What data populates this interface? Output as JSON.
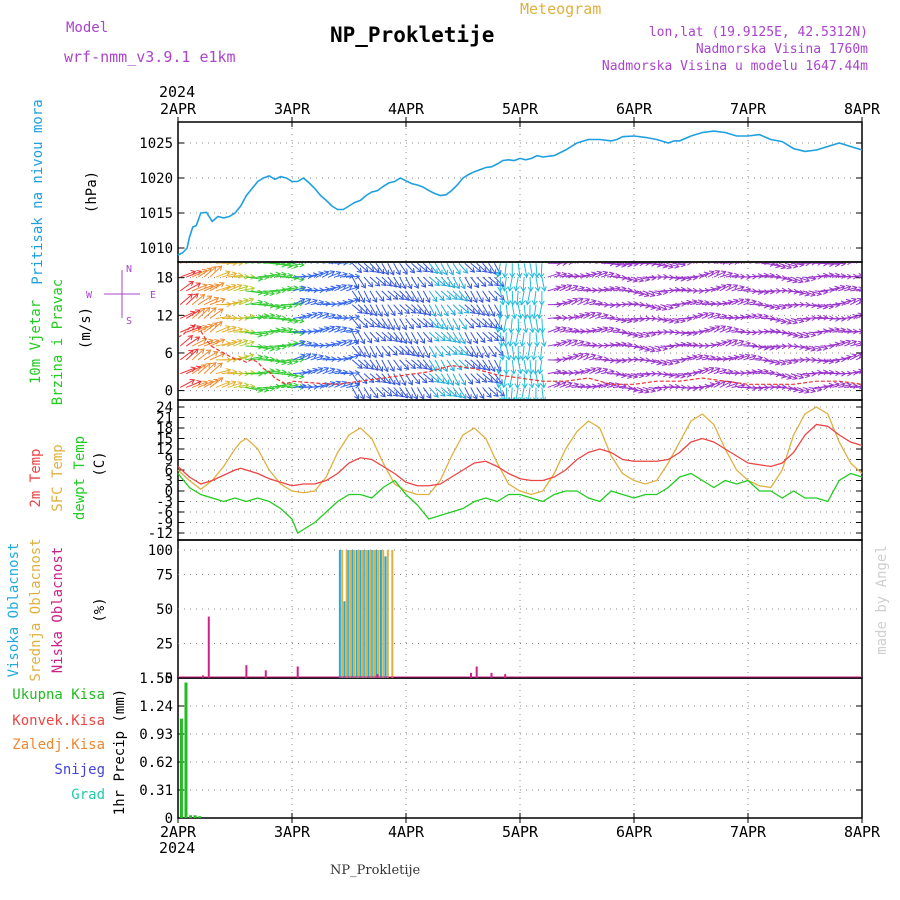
{
  "header": {
    "model_label": "Model",
    "model_name": "wrf-nmm_v3.9.1 e1km",
    "title": "NP_Prokletije",
    "meteogram_label": "Meteogram",
    "lonlat": "lon,lat (19.9125E, 42.5312N)",
    "elevation": "Nadmorska Visina 1760m",
    "model_elevation": "Nadmorska Visina u modelu 1647.44m",
    "footer_title": "NP_Prokletije",
    "credit": "made by Angel"
  },
  "colors": {
    "pressure": "#1ea0e0",
    "wind_axis_label": "#22cc22",
    "compass": "#aa44cc",
    "temp2m": "#ee4444",
    "sfc_temp": "#e0b040",
    "dewpoint": "#22cc22",
    "high_cloud": "#22aadd",
    "mid_cloud": "#e0b040",
    "low_cloud": "#cc2288",
    "total_precip": "#22bb22",
    "convective": "#ee4444",
    "frozen": "#ee8833",
    "snow": "#4444dd",
    "hail": "#22ccaa",
    "header_purple": "#aa44cc",
    "header_gold": "#e0b040"
  },
  "chart_data": [
    {
      "type": "line",
      "title": "",
      "ylabel_lines": [
        "Pritisak na nivou mora",
        "(hPa)"
      ],
      "top_axis_year": "2024",
      "x_ticks": [
        "2APR",
        "3APR",
        "4APR",
        "5APR",
        "6APR",
        "7APR",
        "8APR"
      ],
      "yticks": [
        "1010",
        "1015",
        "1020",
        "1025"
      ],
      "ylim": [
        1008,
        1028
      ],
      "grid": true,
      "series": [
        {
          "x": [
            0,
            0.04,
            0.08,
            0.1,
            0.13,
            0.16,
            0.2,
            0.25,
            0.3,
            0.35,
            0.4,
            0.45,
            0.5,
            0.55,
            0.6,
            0.65,
            0.7,
            0.75,
            0.8,
            0.85,
            0.9,
            0.95,
            1.0,
            1.05,
            1.1,
            1.15,
            1.2,
            1.25,
            1.3,
            1.35,
            1.4,
            1.45,
            1.5,
            1.55,
            1.6,
            1.65,
            1.7,
            1.75,
            1.8,
            1.85,
            1.9,
            1.95,
            2.0,
            2.05,
            2.1,
            2.15,
            2.2,
            2.25,
            2.3,
            2.35,
            2.4,
            2.45,
            2.5,
            2.55,
            2.6,
            2.65,
            2.7,
            2.75,
            2.8,
            2.85,
            2.9,
            2.95,
            3.0,
            3.05,
            3.1,
            3.15,
            3.2,
            3.3,
            3.4,
            3.5,
            3.6,
            3.7,
            3.8,
            3.85,
            3.9,
            4.0,
            4.1,
            4.2,
            4.3,
            4.35,
            4.4,
            4.5,
            4.6,
            4.7,
            4.8,
            4.9,
            5.0,
            5.1,
            5.2,
            5.3,
            5.4,
            5.5,
            5.6,
            5.7,
            5.8,
            5.9,
            6.0
          ],
          "y": [
            1009,
            1009.3,
            1010,
            1011.5,
            1013,
            1013.2,
            1015,
            1015.1,
            1013.8,
            1014.5,
            1014.3,
            1014.5,
            1015,
            1016,
            1017.5,
            1018.5,
            1019.5,
            1020,
            1020.3,
            1019.8,
            1020.2,
            1020,
            1019.5,
            1019.5,
            1020,
            1019.3,
            1018.5,
            1017.5,
            1016.8,
            1016,
            1015.5,
            1015.5,
            1016,
            1016.5,
            1016.8,
            1017.5,
            1018,
            1018.2,
            1018.8,
            1019.3,
            1019.5,
            1020,
            1019.6,
            1019.2,
            1019,
            1018.7,
            1018.2,
            1017.8,
            1017.5,
            1017.6,
            1018.2,
            1019,
            1020,
            1020.5,
            1020.9,
            1021.2,
            1021.5,
            1021.6,
            1022,
            1022.5,
            1022.6,
            1022.5,
            1022.8,
            1022.6,
            1022.8,
            1023.2,
            1023,
            1023.2,
            1024,
            1025,
            1025.5,
            1025.5,
            1025.3,
            1025.5,
            1025.9,
            1026,
            1025.8,
            1025.5,
            1025,
            1025.3,
            1025.3,
            1026,
            1026.5,
            1026.7,
            1026.5,
            1026,
            1026,
            1026.2,
            1025.5,
            1025.2,
            1024.2,
            1023.8,
            1024,
            1024.5,
            1025,
            1024.5,
            1024
          ]
        }
      ]
    },
    {
      "type": "scatter",
      "title": "",
      "ylabel_lines": [
        "10m Vjetar",
        "Brzina i Pravac",
        "(m/s)"
      ],
      "compass": {
        "n": "N",
        "s": "S",
        "e": "E",
        "w": "W"
      },
      "yticks": [
        "0",
        "6",
        "12",
        "18"
      ],
      "ylim": [
        -1.5,
        20.5
      ],
      "grid": true,
      "speed": {
        "x": [
          0,
          0.05,
          0.1,
          0.15,
          0.2,
          0.25,
          0.3,
          0.35,
          0.4,
          0.45,
          0.5,
          0.55,
          0.6,
          0.65,
          0.7,
          0.75,
          0.8,
          0.85,
          0.9,
          0.95,
          1.0,
          1.2,
          1.4,
          1.6,
          1.8,
          2.0,
          2.2,
          2.4,
          2.6,
          2.8,
          3.0,
          3.2,
          3.4,
          3.6,
          3.8,
          4.0,
          4.2,
          4.4,
          4.6,
          4.8,
          5.0,
          5.2,
          5.4,
          5.6,
          5.8,
          6.0
        ],
        "y": [
          8.5,
          9,
          10,
          10.5,
          9.5,
          8,
          7,
          6.5,
          6,
          5.5,
          5,
          5,
          4.5,
          5,
          4.5,
          3.5,
          3,
          2,
          1.5,
          1,
          1.5,
          1.2,
          1,
          1.5,
          2,
          2.5,
          3,
          4,
          3.5,
          2.5,
          2,
          1.5,
          1.5,
          2,
          1,
          1,
          1.5,
          1.5,
          2,
          1.5,
          1,
          1,
          1,
          1.5,
          1.5,
          1
        ]
      }
    },
    {
      "type": "line",
      "title": "",
      "ylabel_lines": [
        "2m Temp",
        "SFC Temp",
        "dewpt Temp",
        "(C)"
      ],
      "yticks": [
        "-12",
        "-9",
        "-6",
        "-3",
        "0",
        "3",
        "6",
        "9",
        "12",
        "15",
        "18",
        "21",
        "24"
      ],
      "ylim": [
        -14,
        26
      ],
      "grid": true,
      "series": [
        {
          "name": "2m Temp",
          "x": [
            0,
            0.1,
            0.2,
            0.3,
            0.4,
            0.5,
            0.55,
            0.6,
            0.7,
            0.8,
            0.9,
            1.0,
            1.1,
            1.2,
            1.3,
            1.4,
            1.5,
            1.6,
            1.7,
            1.8,
            1.9,
            2.0,
            2.1,
            2.2,
            2.3,
            2.4,
            2.5,
            2.6,
            2.7,
            2.8,
            2.9,
            3.0,
            3.1,
            3.2,
            3.3,
            3.4,
            3.5,
            3.6,
            3.7,
            3.8,
            3.9,
            4.0,
            4.1,
            4.2,
            4.3,
            4.4,
            4.5,
            4.6,
            4.7,
            4.8,
            4.9,
            5.0,
            5.1,
            5.2,
            5.3,
            5.4,
            5.5,
            5.6,
            5.7,
            5.8,
            5.9,
            6.0
          ],
          "y": [
            7,
            4,
            2,
            3,
            4.5,
            6,
            6.5,
            6,
            5,
            3.5,
            2.5,
            1.5,
            2,
            2,
            3,
            5,
            8,
            9.5,
            9,
            7,
            5,
            2.5,
            1.5,
            1.5,
            2,
            4,
            6,
            8,
            8.5,
            7,
            5,
            3.5,
            3,
            3,
            4,
            6,
            9,
            11,
            12,
            11,
            9,
            8.5,
            8.5,
            8.5,
            9,
            11,
            14,
            15,
            14,
            12,
            10,
            8,
            7.5,
            7,
            8,
            11,
            16,
            19,
            18.5,
            16,
            14,
            13
          ]
        },
        {
          "name": "SFC Temp",
          "x": [
            0,
            0.1,
            0.2,
            0.3,
            0.4,
            0.5,
            0.55,
            0.6,
            0.7,
            0.8,
            0.9,
            1.0,
            1.1,
            1.2,
            1.3,
            1.4,
            1.5,
            1.6,
            1.7,
            1.8,
            1.9,
            2.0,
            2.1,
            2.2,
            2.3,
            2.4,
            2.5,
            2.6,
            2.7,
            2.8,
            2.9,
            3.0,
            3.1,
            3.2,
            3.3,
            3.4,
            3.5,
            3.6,
            3.7,
            3.8,
            3.9,
            4.0,
            4.1,
            4.2,
            4.3,
            4.4,
            4.5,
            4.6,
            4.7,
            4.8,
            4.9,
            5.0,
            5.1,
            5.2,
            5.3,
            5.4,
            5.5,
            5.6,
            5.7,
            5.8,
            5.9,
            6.0
          ],
          "y": [
            6,
            3,
            0.5,
            3,
            7,
            12,
            14,
            15,
            12,
            6,
            2,
            0,
            -0.5,
            0,
            4,
            11,
            16,
            18,
            15,
            8,
            2,
            0,
            -1,
            -1,
            3,
            10,
            16,
            18,
            15,
            8,
            2,
            0,
            -1,
            0,
            5,
            12,
            17,
            20,
            18,
            10,
            5,
            3,
            2,
            3,
            8,
            14,
            20,
            22,
            19,
            12,
            6,
            3,
            1.5,
            1,
            6,
            16,
            22,
            24,
            22,
            14,
            8,
            5
          ]
        },
        {
          "name": "dewpt Temp",
          "x": [
            0,
            0.1,
            0.2,
            0.3,
            0.4,
            0.5,
            0.6,
            0.7,
            0.8,
            0.9,
            1.0,
            1.05,
            1.1,
            1.2,
            1.3,
            1.4,
            1.5,
            1.6,
            1.7,
            1.8,
            1.9,
            2.0,
            2.1,
            2.2,
            2.3,
            2.4,
            2.5,
            2.6,
            2.7,
            2.8,
            2.9,
            3.0,
            3.1,
            3.2,
            3.3,
            3.4,
            3.5,
            3.6,
            3.7,
            3.8,
            3.9,
            4.0,
            4.1,
            4.2,
            4.3,
            4.4,
            4.5,
            4.6,
            4.7,
            4.8,
            4.9,
            5.0,
            5.1,
            5.2,
            5.3,
            5.4,
            5.5,
            5.6,
            5.7,
            5.8,
            5.9,
            6.0
          ],
          "y": [
            5,
            1,
            -1,
            -2,
            -3,
            -2,
            -3,
            -2,
            -3,
            -5,
            -8,
            -12,
            -11,
            -9,
            -6,
            -3,
            -1,
            -1,
            -2,
            1,
            3,
            -1,
            -4,
            -8,
            -7,
            -6,
            -5,
            -3,
            -2,
            -3,
            -1,
            -1,
            -2,
            -3,
            -1,
            0,
            0,
            -2,
            -3,
            0,
            -1,
            -2,
            -1,
            -1,
            1,
            4,
            5,
            3,
            1,
            3,
            2,
            3,
            0,
            0,
            -2,
            0,
            -2,
            -2,
            -3,
            3,
            5,
            4
          ]
        }
      ]
    },
    {
      "type": "bar",
      "title": "",
      "ylabel_lines": [
        "Visoka Oblacnost",
        "Srednja Oblacnost",
        "Niska Oblacnost",
        "(%)"
      ],
      "yticks": [
        "0",
        "25",
        "50",
        "75",
        "100"
      ],
      "ylim": [
        0,
        100
      ],
      "grid": true,
      "series": [
        {
          "name": "Visoka Oblacnost",
          "x": [
            1.42,
            1.46,
            1.49,
            1.53,
            1.57,
            1.6,
            1.63,
            1.67,
            1.7,
            1.74,
            1.78,
            1.82
          ],
          "values": [
            100,
            60,
            100,
            100,
            100,
            100,
            100,
            100,
            100,
            100,
            100,
            95
          ]
        },
        {
          "name": "Srednja Oblacnost",
          "x": [
            1.44,
            1.48,
            1.51,
            1.55,
            1.58,
            1.62,
            1.65,
            1.69,
            1.72,
            1.76,
            1.8,
            1.84,
            1.88
          ],
          "values": [
            100,
            100,
            100,
            100,
            100,
            100,
            100,
            100,
            100,
            100,
            100,
            100,
            100
          ]
        },
        {
          "name": "Niska Oblacnost",
          "x": [
            0.22,
            0.27,
            0.6,
            0.77,
            1.05,
            1.75,
            2.57,
            2.62,
            2.75,
            2.87
          ],
          "values": [
            2,
            48,
            10,
            6,
            9,
            3,
            4,
            9,
            4,
            3
          ]
        }
      ]
    },
    {
      "type": "bar",
      "title": "",
      "ylabel_lines": [
        "1hr Precip (mm)"
      ],
      "legend": [
        "Ukupna Kisa",
        "Konvek.Kisa",
        "Zaledj.Kisa",
        "Snijeg",
        "Grad"
      ],
      "bottom_axis_year": "2024",
      "yticks": [
        "0",
        "0.31",
        "0.62",
        "0.93",
        "1.24",
        "1.55"
      ],
      "ylim": [
        0,
        1.55
      ],
      "grid": true,
      "series": [
        {
          "name": "Ukupna Kisa",
          "x": [
            0.03,
            0.07,
            0.11,
            0.15,
            0.19
          ],
          "values": [
            1.1,
            1.5,
            0.03,
            0.03,
            0.02
          ]
        }
      ]
    }
  ]
}
